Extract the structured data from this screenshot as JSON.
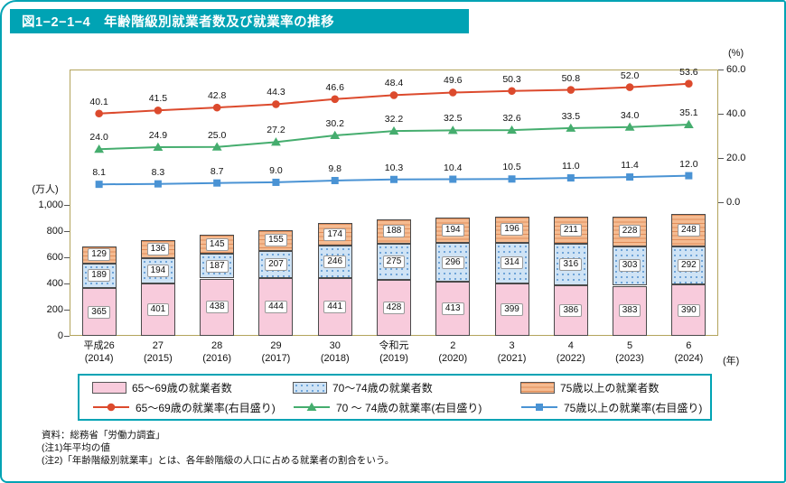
{
  "page": {
    "title": "図1−2−1−4　年齢階級別就業者数及び就業率の推移"
  },
  "chart_data": {
    "type": "bar+line",
    "title": "年齢階級別就業者数及び就業率の推移",
    "categories": [
      {
        "era": "平成26",
        "year": "(2014)"
      },
      {
        "era": "27",
        "year": "(2015)"
      },
      {
        "era": "28",
        "year": "(2016)"
      },
      {
        "era": "29",
        "year": "(2017)"
      },
      {
        "era": "30",
        "year": "(2018)"
      },
      {
        "era": "令和元",
        "year": "(2019)"
      },
      {
        "era": "2",
        "year": "(2020)"
      },
      {
        "era": "3",
        "year": "(2021)"
      },
      {
        "era": "4",
        "year": "(2022)"
      },
      {
        "era": "5",
        "year": "(2023)"
      },
      {
        "era": "6",
        "year": "(2024)"
      }
    ],
    "x_axis_unit": "(年)",
    "left_axis": {
      "label": "(万人)",
      "max": 1000,
      "ticks": [
        {
          "v": 1000,
          "label": "1,000"
        },
        {
          "v": 800,
          "label": "800"
        },
        {
          "v": 600,
          "label": "600"
        },
        {
          "v": 400,
          "label": "400"
        },
        {
          "v": 200,
          "label": "200"
        },
        {
          "v": 0,
          "label": "0"
        }
      ]
    },
    "right_axis": {
      "label": "(%)",
      "max": 60,
      "ticks": [
        {
          "v": 60,
          "label": "60.0"
        },
        {
          "v": 40,
          "label": "40.0"
        },
        {
          "v": 20,
          "label": "20.0"
        },
        {
          "v": 0,
          "label": "0.0"
        }
      ]
    },
    "bar_series": [
      {
        "name": "65〜69歳の就業者数",
        "values": [
          365,
          401,
          438,
          444,
          441,
          428,
          413,
          399,
          386,
          383,
          390
        ],
        "color": "#f8cbdc",
        "pattern": "solid",
        "pattern_color": "#f8cbdc"
      },
      {
        "name": "70〜74歳の就業者数",
        "values": [
          189,
          194,
          187,
          207,
          246,
          275,
          296,
          314,
          316,
          303,
          292
        ],
        "color": "#cfe3f5",
        "pattern": "dots",
        "pattern_color": "#6fa4d8"
      },
      {
        "name": "75歳以上の就業者数",
        "values": [
          129,
          136,
          145,
          155,
          174,
          188,
          194,
          196,
          211,
          228,
          248
        ],
        "color": "#f5bb91",
        "pattern": "stripes",
        "pattern_color": "#e08d5a"
      }
    ],
    "line_series": [
      {
        "name": "65〜69歳の就業率(右目盛り)",
        "values": [
          40.1,
          41.5,
          42.8,
          44.3,
          46.6,
          48.4,
          49.6,
          50.3,
          50.8,
          52.0,
          53.6
        ],
        "color": "#dc4a2d",
        "marker": "circle"
      },
      {
        "name": "70 〜 74歳の就業率(右目盛り)",
        "values": [
          24.0,
          24.9,
          25.0,
          27.2,
          30.2,
          32.2,
          32.5,
          32.6,
          33.5,
          34.0,
          35.1
        ],
        "color": "#45ad6e",
        "marker": "triangle"
      },
      {
        "name": "75歳以上の就業率(右目盛り)",
        "values": [
          8.1,
          8.3,
          8.7,
          9.0,
          9.8,
          10.3,
          10.4,
          10.5,
          11.0,
          11.4,
          12.0
        ],
        "color": "#4a93d4",
        "marker": "square"
      }
    ]
  },
  "notes": [
    "資料：総務省「労働力調査」",
    "(注1)年平均の値",
    "(注2)「年齢階級別就業率」とは、各年齢階級の人口に占める就業者の割合をいう。"
  ]
}
